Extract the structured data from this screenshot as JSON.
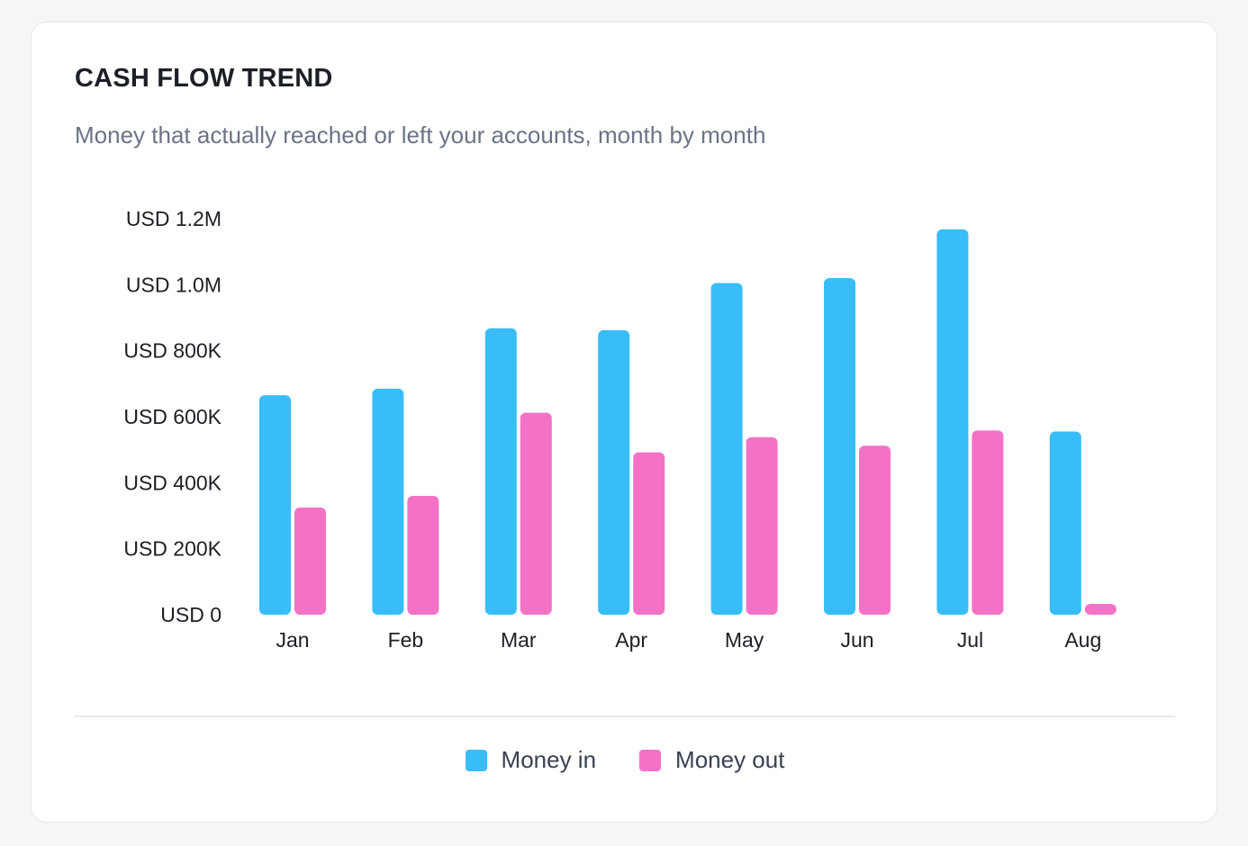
{
  "card": {
    "title": "CASH FLOW TREND",
    "subtitle": "Money that actually reached or left your accounts, month by month"
  },
  "colors": {
    "money_in": "#38bdf8",
    "money_out": "#f472c6",
    "card_background": "#ffffff",
    "page_background": "#f5f6f8"
  },
  "chart_data": {
    "type": "bar",
    "title": "CASH FLOW TREND",
    "subtitle": "Money that actually reached or left your accounts, month by month",
    "xlabel": "",
    "ylabel": "",
    "categories": [
      "Jan",
      "Feb",
      "Mar",
      "Apr",
      "May",
      "Jun",
      "Jul",
      "Aug"
    ],
    "series": [
      {
        "name": "Money in",
        "color": "#38bdf8",
        "values": [
          665000,
          685000,
          868000,
          862000,
          1005000,
          1020000,
          1168000,
          555000
        ]
      },
      {
        "name": "Money out",
        "color": "#f472c6",
        "values": [
          325000,
          360000,
          612000,
          492000,
          538000,
          512000,
          558000,
          30000
        ]
      }
    ],
    "ylim": [
      0,
      1200000
    ],
    "yticks": [
      0,
      200000,
      400000,
      600000,
      800000,
      1000000,
      1200000
    ],
    "ytick_labels": [
      "USD 0",
      "USD 200K",
      "USD 400K",
      "USD 600K",
      "USD 800K",
      "USD 1.0M",
      "USD 1.2M"
    ],
    "grid": false,
    "legend": "bottom-center"
  }
}
